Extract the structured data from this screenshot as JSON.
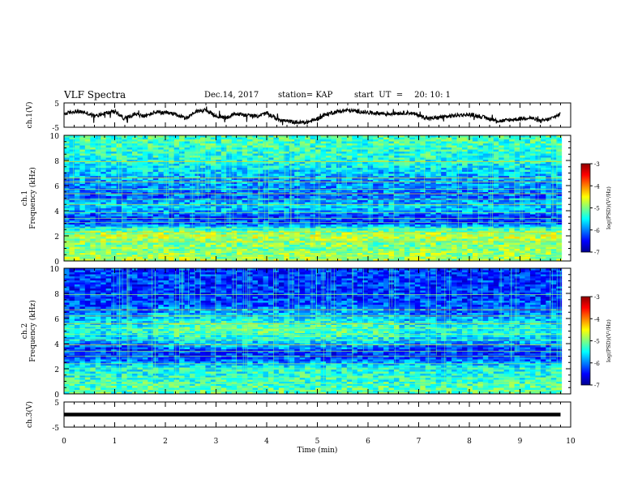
{
  "header": {
    "title": "VLF Spectra",
    "date": "Dec.14, 2017",
    "station": "station= KAP",
    "start_label": "start  UT  =",
    "start_time": "20: 10: 1"
  },
  "chart_data": [
    {
      "type": "line",
      "panel": "ch1-waveform",
      "ylabel": "ch.1(V)",
      "ylim": [
        -5,
        5
      ],
      "y_ticks": [
        "5",
        "-5"
      ],
      "x": [
        0,
        0.2,
        0.4,
        0.6,
        0.8,
        1.0,
        1.2,
        1.4,
        1.6,
        1.8,
        2.0,
        2.2,
        2.4,
        2.6,
        2.8,
        3.0,
        3.2,
        3.4,
        3.6,
        3.8,
        4.0,
        4.2,
        4.4,
        4.6,
        4.8,
        5.0,
        5.2,
        5.4,
        5.6,
        5.8,
        6.0,
        6.2,
        6.4,
        6.6,
        6.8,
        7.0,
        7.2,
        7.4,
        7.6,
        7.8,
        8.0,
        8.2,
        8.4,
        8.6,
        8.8,
        9.0,
        9.2,
        9.4,
        9.6,
        9.8
      ],
      "y": [
        0.5,
        1.5,
        1.2,
        -0.5,
        0.8,
        1.5,
        -1.5,
        0.5,
        -0.5,
        1.2,
        0.8,
        0.5,
        -1.5,
        1.5,
        2.0,
        -0.5,
        -1.0,
        0.5,
        0.0,
        -0.5,
        0.8,
        -1.5,
        -2.5,
        -3.0,
        -3.0,
        -1.5,
        0.5,
        1.5,
        2.0,
        1.5,
        1.0,
        0.8,
        0.5,
        0.8,
        1.0,
        0.0,
        -1.5,
        -1.0,
        -0.5,
        0.0,
        0.2,
        -0.5,
        -1.5,
        -2.5,
        -2.0,
        -1.5,
        -1.0,
        -2.5,
        -1.5,
        0.5
      ]
    },
    {
      "type": "heatmap",
      "panel": "ch1-spectrogram",
      "ylabel": "ch.1\nFrequency (kHz)",
      "ylim": [
        0,
        10
      ],
      "y_ticks": [
        "0",
        "2",
        "4",
        "6",
        "8",
        "10"
      ],
      "colorbar": {
        "label": "log(PSD)(V²/Hz)",
        "range": [
          -7,
          -3
        ],
        "ticks": [
          "-3",
          "-4",
          "-5",
          "-6",
          "-7"
        ]
      },
      "freq_profile_kHz": [
        0,
        0.5,
        1.0,
        1.5,
        2.0,
        2.5,
        3.0,
        3.5,
        4.0,
        4.5,
        5.0,
        5.5,
        6.0,
        6.5,
        7.0,
        8.0,
        9.0,
        10.0
      ],
      "level_profile": [
        -4.8,
        -4.9,
        -5.0,
        -5.0,
        -4.7,
        -5.3,
        -6.2,
        -6.3,
        -5.8,
        -5.7,
        -6.1,
        -6.0,
        -5.9,
        -5.9,
        -5.7,
        -5.4,
        -5.3,
        -5.2
      ]
    },
    {
      "type": "heatmap",
      "panel": "ch2-spectrogram",
      "ylabel": "ch.2\nFrequency (kHz)",
      "ylim": [
        0,
        10
      ],
      "y_ticks": [
        "0",
        "2",
        "4",
        "6",
        "8",
        "10"
      ],
      "colorbar": {
        "label": "log(PSD)(V²/Hz)",
        "range": [
          -7,
          -3
        ],
        "ticks": [
          "-3",
          "-4",
          "-5",
          "-6",
          "-7"
        ]
      },
      "freq_profile_kHz": [
        0,
        0.5,
        1.0,
        1.5,
        2.0,
        2.5,
        3.0,
        3.5,
        4.0,
        4.5,
        5.0,
        5.5,
        6.0,
        6.5,
        7.0,
        8.0,
        9.0,
        10.0
      ],
      "level_profile": [
        -5.2,
        -5.2,
        -5.3,
        -5.4,
        -5.4,
        -5.9,
        -6.3,
        -6.3,
        -6.0,
        -5.6,
        -5.4,
        -5.5,
        -5.8,
        -6.1,
        -6.2,
        -6.3,
        -6.3,
        -6.3
      ]
    },
    {
      "type": "line",
      "panel": "ch3-waveform",
      "ylabel": "ch.3(V)",
      "ylim": [
        -5,
        5
      ],
      "y_ticks": [
        "5",
        "-5"
      ],
      "x": [
        0,
        9.8
      ],
      "y": [
        0,
        0
      ]
    }
  ],
  "x_axis": {
    "xlabel": "Time  (min)",
    "xlim": [
      0,
      10
    ],
    "ticks": [
      "0",
      "1",
      "2",
      "3",
      "4",
      "5",
      "6",
      "7",
      "8",
      "9",
      "10"
    ]
  },
  "colors": {
    "waveform": "#000000",
    "colormap": [
      "#00008f",
      "#0000ff",
      "#0080ff",
      "#00ffff",
      "#80ff80",
      "#ffff00",
      "#ff8000",
      "#ff0000",
      "#8f0000"
    ]
  }
}
